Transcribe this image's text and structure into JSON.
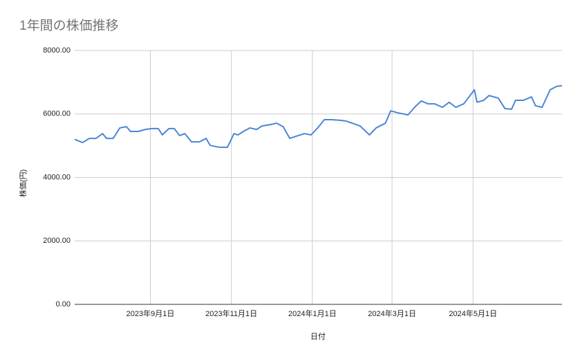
{
  "chart_data": {
    "type": "line",
    "title": "1年間の株価推移",
    "x_label": "日付",
    "y_label": "株価(円)",
    "x": [
      "2023-07-06",
      "2023-07-12",
      "2023-07-17",
      "2023-07-22",
      "2023-07-27",
      "2023-07-30",
      "2023-08-04",
      "2023-08-09",
      "2023-08-14",
      "2023-08-17",
      "2023-08-23",
      "2023-08-28",
      "2023-09-02",
      "2023-09-07",
      "2023-09-10",
      "2023-09-15",
      "2023-09-19",
      "2023-09-23",
      "2023-09-27",
      "2023-10-02",
      "2023-10-08",
      "2023-10-13",
      "2023-10-16",
      "2023-10-23",
      "2023-10-29",
      "2023-11-03",
      "2023-11-06",
      "2023-11-10",
      "2023-11-15",
      "2023-11-20",
      "2023-11-24",
      "2023-12-01",
      "2023-12-05",
      "2023-12-10",
      "2023-12-15",
      "2023-12-20",
      "2023-12-26",
      "2023-12-31",
      "2024-01-05",
      "2024-01-10",
      "2024-01-15",
      "2024-01-22",
      "2024-01-26",
      "2024-01-31",
      "2024-02-06",
      "2024-02-13",
      "2024-02-18",
      "2024-02-25",
      "2024-02-29",
      "2024-03-05",
      "2024-03-13",
      "2024-03-18",
      "2024-03-23",
      "2024-03-28",
      "2024-04-02",
      "2024-04-08",
      "2024-04-13",
      "2024-04-18",
      "2024-04-24",
      "2024-05-02",
      "2024-05-04",
      "2024-05-09",
      "2024-05-13",
      "2024-05-20",
      "2024-05-25",
      "2024-05-30",
      "2024-06-02",
      "2024-06-08",
      "2024-06-14",
      "2024-06-17",
      "2024-06-22",
      "2024-06-28",
      "2024-07-03",
      "2024-07-07"
    ],
    "series": [
      {
        "name": "株価",
        "color": "#4a86d4",
        "values": [
          5200,
          5100,
          5230,
          5230,
          5380,
          5230,
          5230,
          5560,
          5600,
          5450,
          5450,
          5510,
          5540,
          5540,
          5340,
          5540,
          5540,
          5320,
          5380,
          5120,
          5120,
          5230,
          5010,
          4950,
          4950,
          5380,
          5340,
          5450,
          5560,
          5510,
          5620,
          5670,
          5710,
          5600,
          5230,
          5300,
          5380,
          5340,
          5560,
          5820,
          5820,
          5800,
          5780,
          5710,
          5620,
          5340,
          5560,
          5710,
          6100,
          6040,
          5970,
          6210,
          6410,
          6320,
          6320,
          6210,
          6370,
          6210,
          6320,
          6760,
          6370,
          6430,
          6580,
          6500,
          6170,
          6150,
          6430,
          6430,
          6540,
          6260,
          6210,
          6760,
          6870,
          6890
        ]
      }
    ],
    "xlim": [
      "2023-07-06",
      "2024-07-07"
    ],
    "xticks": [
      {
        "value": "2023-09-01",
        "label": "2023年9月1日"
      },
      {
        "value": "2023-11-01",
        "label": "2023年11月1日"
      },
      {
        "value": "2024-01-01",
        "label": "2024年1月1日"
      },
      {
        "value": "2024-03-01",
        "label": "2024年3月1日"
      },
      {
        "value": "2024-05-01",
        "label": "2024年5月1日"
      }
    ],
    "ylim": [
      0,
      8000
    ],
    "yticks": [
      {
        "value": 0,
        "label": "0.00"
      },
      {
        "value": 2000,
        "label": "2000.00"
      },
      {
        "value": 4000,
        "label": "4000.00"
      },
      {
        "value": 6000,
        "label": "6000.00"
      },
      {
        "value": 8000,
        "label": "8000.00"
      }
    ],
    "grid": true
  }
}
